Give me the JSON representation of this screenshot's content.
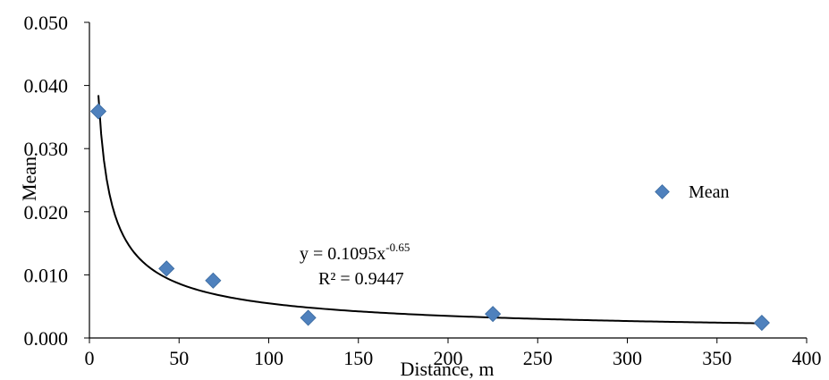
{
  "chart_data": {
    "type": "scatter",
    "xlabel": "Distance, m",
    "ylabel": "Mean",
    "xlim": [
      0,
      400
    ],
    "ylim": [
      0,
      0.05
    ],
    "x_ticks": [
      "0",
      "50",
      "100",
      "150",
      "200",
      "250",
      "300",
      "350",
      "400"
    ],
    "y_ticks": [
      "0.000",
      "0.010",
      "0.020",
      "0.030",
      "0.040",
      "0.050"
    ],
    "x_tick_values": [
      0,
      50,
      100,
      150,
      200,
      250,
      300,
      350,
      400
    ],
    "y_tick_values": [
      0,
      0.01,
      0.02,
      0.03,
      0.04,
      0.05
    ],
    "series": [
      {
        "name": "Mean",
        "marker": "diamond",
        "color": "#4f81bd",
        "points": [
          {
            "x": 5,
            "y": 0.0359
          },
          {
            "x": 43,
            "y": 0.011
          },
          {
            "x": 69,
            "y": 0.0091
          },
          {
            "x": 122,
            "y": 0.0032
          },
          {
            "x": 225,
            "y": 0.0038
          },
          {
            "x": 375,
            "y": 0.0024
          }
        ]
      }
    ],
    "trendline": {
      "type": "power",
      "a": 0.1095,
      "b": -0.65,
      "x_range": [
        5,
        375
      ],
      "color": "#000000",
      "equation_base": "y = 0.1095x",
      "equation_exp": "-0.65",
      "r_squared": "R² = 0.9447"
    },
    "legend": {
      "position": "right",
      "label": "Mean"
    },
    "grid": false
  }
}
